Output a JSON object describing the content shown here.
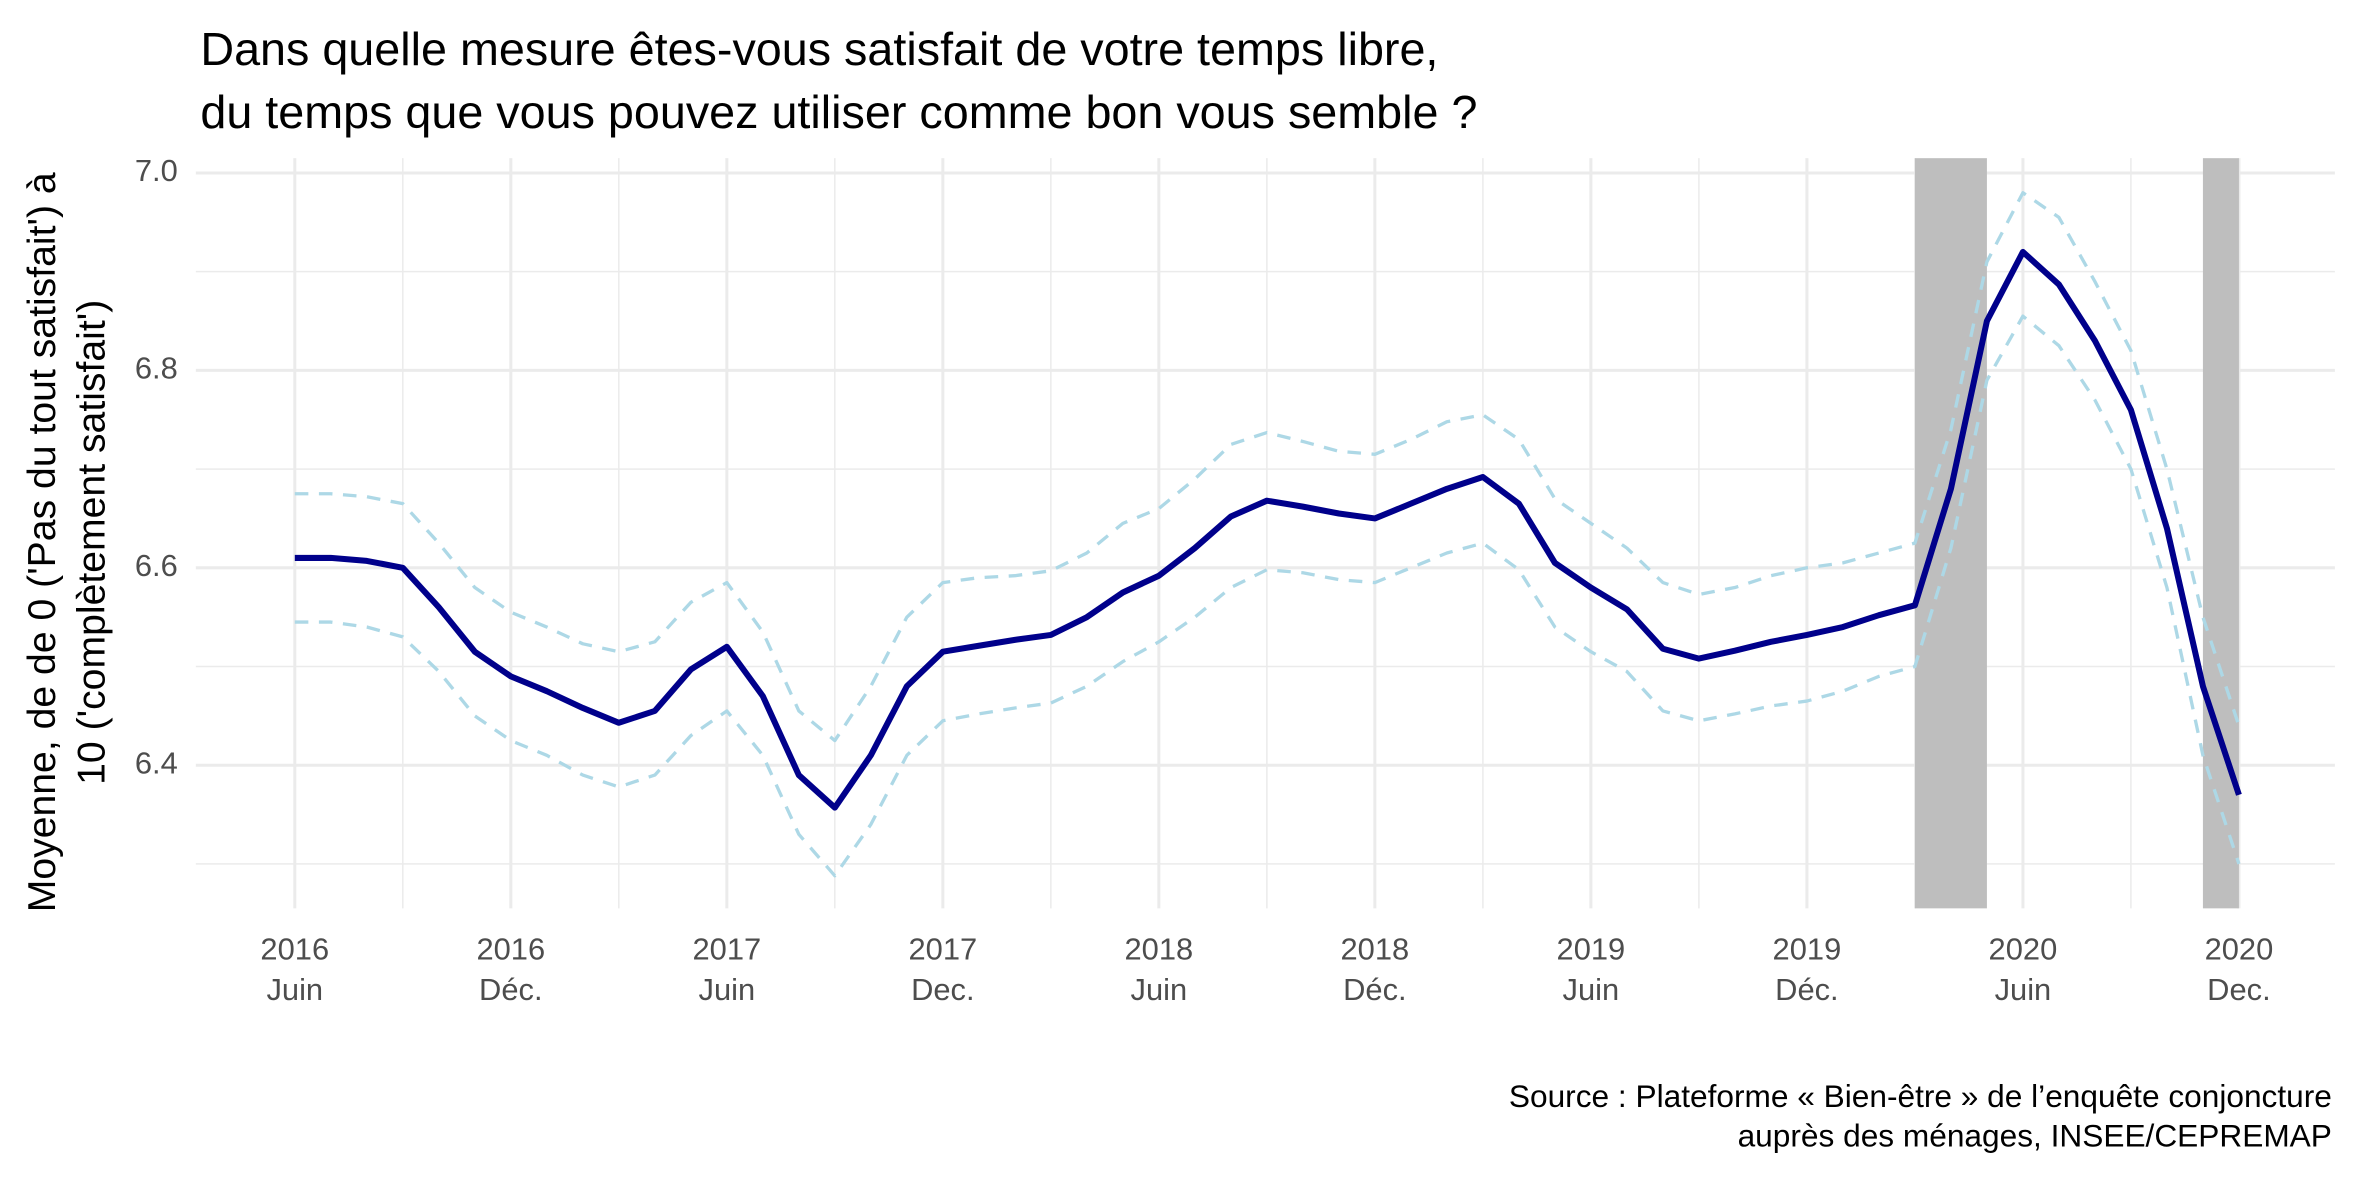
{
  "chart_data": {
    "type": "line",
    "title": "Dans quelle mesure êtes-vous satisfait de votre temps libre,\ndu temps que vous pouvez utiliser comme bon vous semble ?",
    "y_label": "Moyenne, de de 0 ('Pas du tout satisfait') à\n10 ('complètement satisfait')",
    "caption": "Source : Plateforme « Bien-être » de l’enquête conjoncture\nauprès des ménages, INSEE/CEPREMAP",
    "x": [
      "2016-06",
      "2016-07",
      "2016-08",
      "2016-09",
      "2016-10",
      "2016-11",
      "2016-12",
      "2017-01",
      "2017-02",
      "2017-03",
      "2017-04",
      "2017-05",
      "2017-06",
      "2017-07",
      "2017-08",
      "2017-09",
      "2017-10",
      "2017-11",
      "2017-12",
      "2018-01",
      "2018-02",
      "2018-03",
      "2018-04",
      "2018-05",
      "2018-06",
      "2018-07",
      "2018-08",
      "2018-09",
      "2018-10",
      "2018-11",
      "2018-12",
      "2019-01",
      "2019-02",
      "2019-03",
      "2019-04",
      "2019-05",
      "2019-06",
      "2019-07",
      "2019-08",
      "2019-09",
      "2019-10",
      "2019-11",
      "2019-12",
      "2020-01",
      "2020-02",
      "2020-03",
      "2020-04",
      "2020-05",
      "2020-06",
      "2020-07",
      "2020-08",
      "2020-09",
      "2020-10",
      "2020-11",
      "2020-12"
    ],
    "series": [
      {
        "color": "#00008b",
        "linestyle": "solid",
        "values": [
          6.61,
          6.61,
          6.607,
          6.6,
          6.56,
          6.515,
          6.49,
          6.475,
          6.458,
          6.443,
          6.455,
          6.497,
          6.52,
          6.47,
          6.39,
          6.357,
          6.41,
          6.48,
          6.515,
          6.521,
          6.527,
          6.532,
          6.55,
          6.575,
          6.592,
          6.62,
          6.652,
          6.668,
          6.662,
          6.655,
          6.65,
          6.665,
          6.68,
          6.692,
          6.665,
          6.605,
          6.58,
          6.558,
          6.518,
          6.508,
          6.516,
          6.525,
          6.532,
          6.54,
          6.552,
          6.562,
          6.68,
          6.85,
          6.92,
          6.887,
          6.83,
          6.76,
          6.64,
          6.48,
          6.37
        ]
      },
      {
        "color": "#add8e6",
        "linestyle": "dashed",
        "values": [
          6.675,
          6.675,
          6.672,
          6.665,
          6.625,
          6.58,
          6.555,
          6.54,
          6.523,
          6.515,
          6.525,
          6.565,
          6.585,
          6.535,
          6.455,
          6.425,
          6.48,
          6.55,
          6.585,
          6.59,
          6.592,
          6.597,
          6.615,
          6.645,
          6.66,
          6.69,
          6.725,
          6.737,
          6.728,
          6.718,
          6.715,
          6.73,
          6.748,
          6.755,
          6.73,
          6.67,
          6.645,
          6.62,
          6.585,
          6.573,
          6.58,
          6.592,
          6.6,
          6.605,
          6.615,
          6.625,
          6.74,
          6.91,
          6.98,
          6.955,
          6.89,
          6.82,
          6.7,
          6.55,
          6.44
        ]
      },
      {
        "color": "#add8e6",
        "linestyle": "dashed",
        "values": [
          6.545,
          6.545,
          6.54,
          6.53,
          6.495,
          6.45,
          6.425,
          6.41,
          6.39,
          6.378,
          6.39,
          6.43,
          6.455,
          6.41,
          6.33,
          6.288,
          6.34,
          6.41,
          6.445,
          6.452,
          6.458,
          6.463,
          6.48,
          6.505,
          6.525,
          6.55,
          6.58,
          6.598,
          6.595,
          6.588,
          6.585,
          6.6,
          6.615,
          6.625,
          6.598,
          6.54,
          6.515,
          6.495,
          6.455,
          6.445,
          6.452,
          6.46,
          6.465,
          6.475,
          6.49,
          6.5,
          6.62,
          6.79,
          6.855,
          6.825,
          6.77,
          6.7,
          6.58,
          6.41,
          6.3
        ]
      }
    ],
    "shaded_periods": [
      [
        "2020-03",
        "2020-05"
      ],
      [
        "2020-11",
        "2020-12"
      ]
    ],
    "shade_color": "#bebebe",
    "xlim": [
      "2016-03",
      "2021-03"
    ],
    "xticks": [
      {
        "value": "2016-06",
        "label": "2016\nJuin"
      },
      {
        "value": "2016-12",
        "label": "2016\nDéc."
      },
      {
        "value": "2017-06",
        "label": "2017\nJuin"
      },
      {
        "value": "2017-12",
        "label": "2017\nDec."
      },
      {
        "value": "2018-06",
        "label": "2018\nJuin"
      },
      {
        "value": "2018-12",
        "label": "2018\nDéc."
      },
      {
        "value": "2019-06",
        "label": "2019\nJuin"
      },
      {
        "value": "2019-12",
        "label": "2019\nDéc."
      },
      {
        "value": "2020-06",
        "label": "2020\nJuin"
      },
      {
        "value": "2020-12",
        "label": "2020\nDec."
      }
    ],
    "xminor": [
      "2016-09",
      "2017-03",
      "2017-09",
      "2018-03",
      "2018-09",
      "2019-03",
      "2019-09",
      "2020-03",
      "2020-09"
    ],
    "ylim": [
      6.255,
      7.015
    ],
    "yticks": [
      6.4,
      6.6,
      6.8,
      {
        "value": 7,
        "label": "7.0"
      }
    ],
    "yminor": [
      6.3,
      6.5,
      6.7,
      6.9
    ],
    "grid": true
  }
}
